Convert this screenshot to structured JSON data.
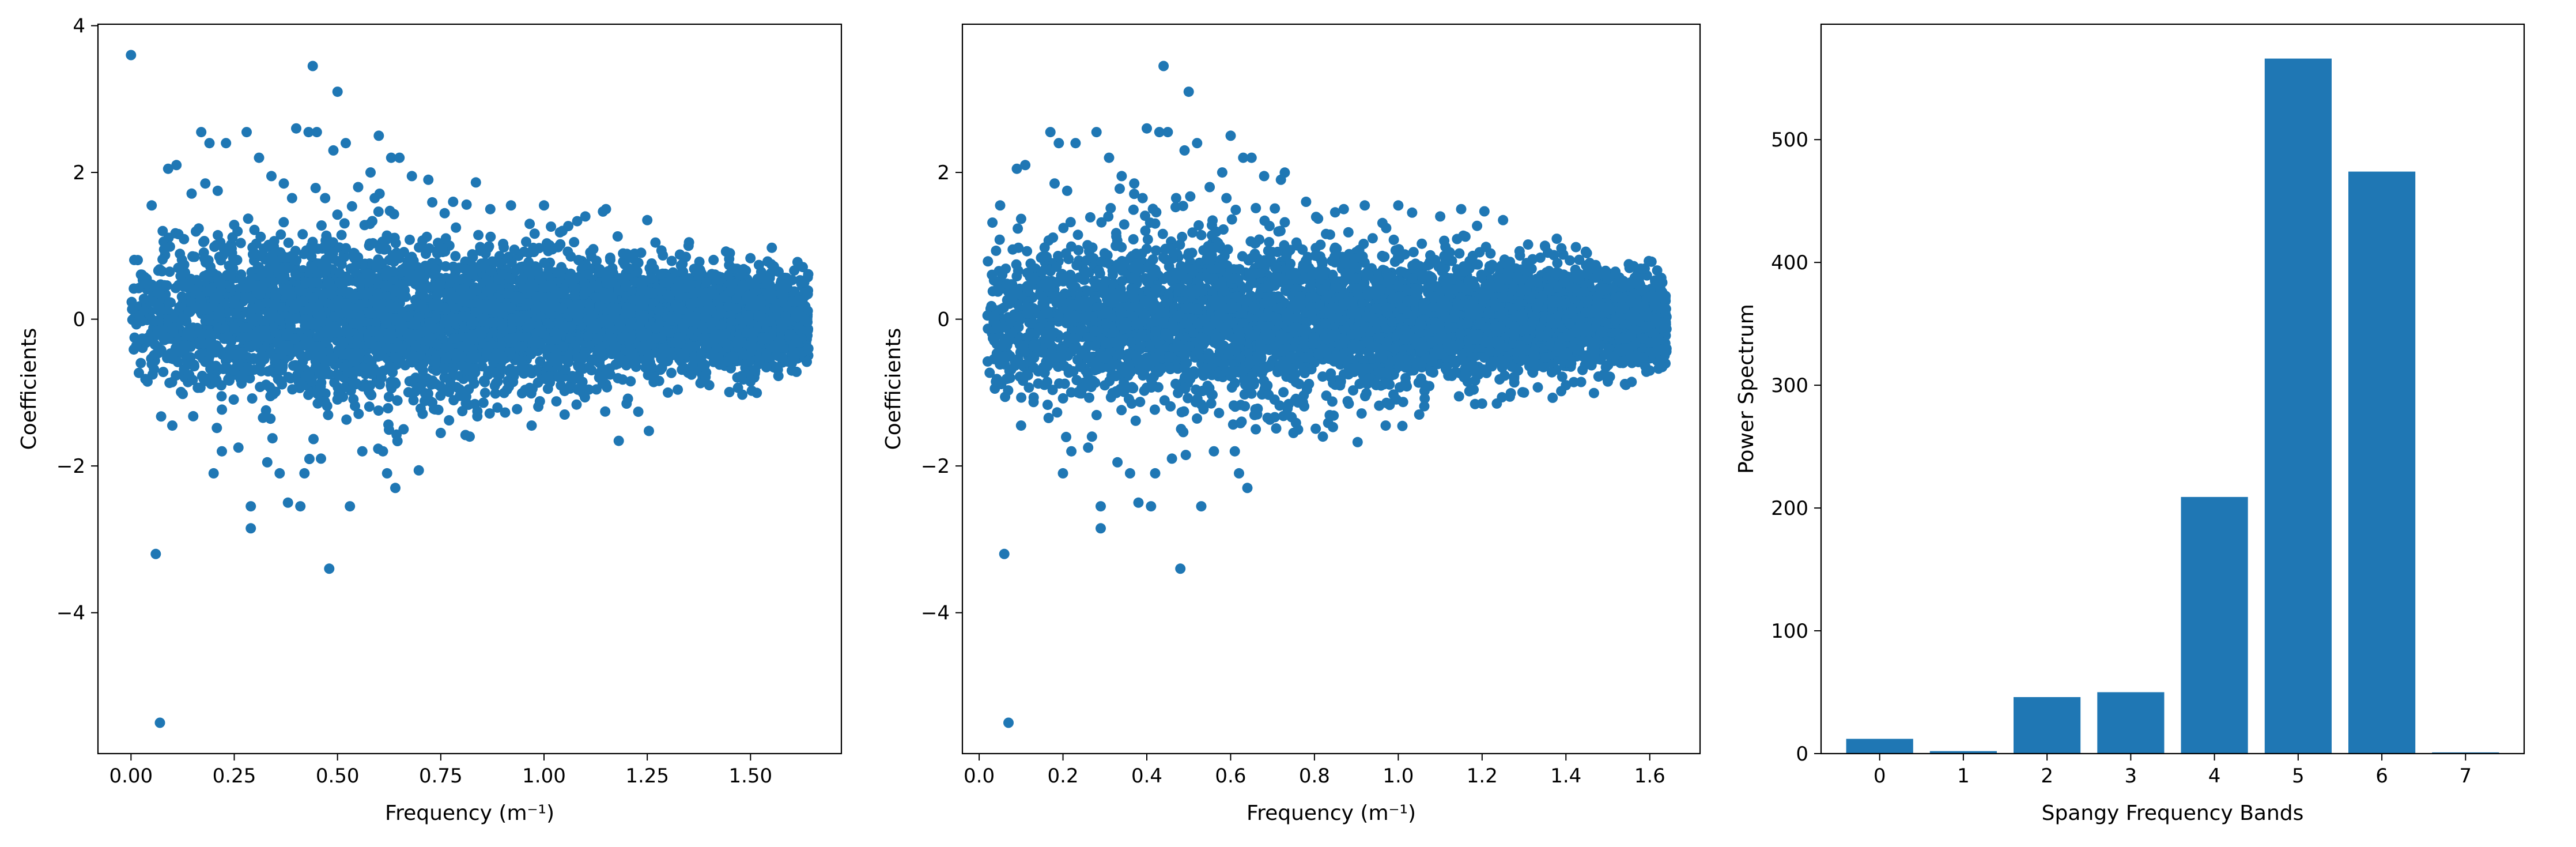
{
  "chart_data": [
    {
      "type": "scatter",
      "xlabel": "Frequency (m⁻¹)",
      "ylabel": "Coefficients",
      "xlim": [
        -0.08,
        1.72
      ],
      "ylim": [
        -5.92,
        4.02
      ],
      "xticks": [
        0.0,
        0.25,
        0.5,
        0.75,
        1.0,
        1.25,
        1.5
      ],
      "xtick_labels": [
        "0.00",
        "0.25",
        "0.50",
        "0.75",
        "1.00",
        "1.25",
        "1.50"
      ],
      "yticks": [
        -4,
        -2,
        0,
        2,
        4
      ],
      "ytick_labels": [
        "−4",
        "−2",
        "0",
        "2",
        "4"
      ],
      "points": [
        [
          0.0,
          3.6
        ],
        [
          0.02,
          0.05
        ],
        [
          0.04,
          -0.85
        ],
        [
          0.05,
          1.55
        ],
        [
          0.06,
          -3.2
        ],
        [
          0.07,
          -5.5
        ],
        [
          0.08,
          0.95
        ],
        [
          0.09,
          2.05
        ],
        [
          0.11,
          2.1
        ],
        [
          0.1,
          -1.45
        ],
        [
          0.13,
          -0.35
        ],
        [
          0.15,
          0.85
        ],
        [
          0.17,
          2.55
        ],
        [
          0.18,
          1.85
        ],
        [
          0.19,
          2.4
        ],
        [
          0.2,
          -2.1
        ],
        [
          0.21,
          1.75
        ],
        [
          0.22,
          -1.8
        ],
        [
          0.23,
          2.4
        ],
        [
          0.25,
          0.25
        ],
        [
          0.26,
          -1.75
        ],
        [
          0.28,
          2.55
        ],
        [
          0.29,
          -2.55
        ],
        [
          0.29,
          -2.85
        ],
        [
          0.31,
          2.2
        ],
        [
          0.33,
          -1.95
        ],
        [
          0.34,
          1.95
        ],
        [
          0.36,
          -2.1
        ],
        [
          0.37,
          1.85
        ],
        [
          0.38,
          -2.5
        ],
        [
          0.39,
          1.65
        ],
        [
          0.4,
          2.6
        ],
        [
          0.41,
          -2.55
        ],
        [
          0.42,
          -2.1
        ],
        [
          0.43,
          2.55
        ],
        [
          0.44,
          3.45
        ],
        [
          0.45,
          2.55
        ],
        [
          0.46,
          -1.9
        ],
        [
          0.47,
          1.65
        ],
        [
          0.48,
          -3.4
        ],
        [
          0.49,
          2.3
        ],
        [
          0.5,
          3.1
        ],
        [
          0.52,
          2.4
        ],
        [
          0.53,
          -2.55
        ],
        [
          0.55,
          1.8
        ],
        [
          0.56,
          -1.8
        ],
        [
          0.58,
          2.0
        ],
        [
          0.59,
          1.65
        ],
        [
          0.6,
          2.5
        ],
        [
          0.61,
          -1.8
        ],
        [
          0.62,
          -2.1
        ],
        [
          0.63,
          2.2
        ],
        [
          0.64,
          -2.3
        ],
        [
          0.65,
          2.2
        ],
        [
          0.66,
          -1.5
        ],
        [
          0.68,
          1.95
        ],
        [
          0.72,
          1.9
        ],
        [
          0.75,
          -1.55
        ],
        [
          0.78,
          1.6
        ],
        [
          0.82,
          -1.6
        ],
        [
          0.87,
          1.5
        ],
        [
          0.92,
          1.55
        ],
        [
          0.97,
          -1.45
        ],
        [
          1.0,
          1.55
        ],
        [
          1.05,
          -1.3
        ],
        [
          1.1,
          1.4
        ],
        [
          1.15,
          1.5
        ],
        [
          1.2,
          -1.15
        ],
        [
          1.25,
          1.35
        ],
        [
          1.3,
          -1.0
        ],
        [
          1.35,
          1.0
        ],
        [
          1.4,
          -0.9
        ],
        [
          1.45,
          0.9
        ],
        [
          1.5,
          -0.85
        ],
        [
          1.55,
          0.75
        ],
        [
          1.6,
          -0.7
        ],
        [
          1.63,
          0.5
        ],
        [
          1.64,
          -0.4
        ]
      ],
      "cloud": {
        "generated": true,
        "x_range": [
          0.0,
          1.64
        ],
        "envelope_x": [
          0.0,
          0.25,
          0.5,
          0.75,
          1.0,
          1.25,
          1.5,
          1.64
        ],
        "envelope_y": [
          1.1,
          1.25,
          1.35,
          1.25,
          1.05,
          0.9,
          0.75,
          0.65
        ]
      }
    },
    {
      "type": "scatter",
      "xlabel": "Frequency (m⁻¹)",
      "ylabel": "Coefficients",
      "xlim": [
        -0.04,
        1.72
      ],
      "ylim": [
        -5.92,
        4.02
      ],
      "xticks": [
        0.0,
        0.2,
        0.4,
        0.6,
        0.8,
        1.0,
        1.2,
        1.4,
        1.6
      ],
      "xtick_labels": [
        "0.0",
        "0.2",
        "0.4",
        "0.6",
        "0.8",
        "1.0",
        "1.2",
        "1.4",
        "1.6"
      ],
      "yticks": [
        -4,
        -2,
        0,
        2
      ],
      "ytick_labels": [
        "−4",
        "−2",
        "0",
        "2"
      ],
      "points": [
        [
          0.02,
          0.05
        ],
        [
          0.04,
          -0.85
        ],
        [
          0.05,
          1.55
        ],
        [
          0.06,
          -3.2
        ],
        [
          0.07,
          -5.5
        ],
        [
          0.08,
          0.95
        ],
        [
          0.09,
          2.05
        ],
        [
          0.11,
          2.1
        ],
        [
          0.1,
          -1.45
        ],
        [
          0.13,
          -0.35
        ],
        [
          0.15,
          0.85
        ],
        [
          0.17,
          2.55
        ],
        [
          0.18,
          1.85
        ],
        [
          0.19,
          2.4
        ],
        [
          0.2,
          -2.1
        ],
        [
          0.21,
          1.75
        ],
        [
          0.22,
          -1.8
        ],
        [
          0.23,
          2.4
        ],
        [
          0.25,
          0.25
        ],
        [
          0.26,
          -1.75
        ],
        [
          0.28,
          2.55
        ],
        [
          0.29,
          -2.55
        ],
        [
          0.29,
          -2.85
        ],
        [
          0.31,
          2.2
        ],
        [
          0.33,
          -1.95
        ],
        [
          0.34,
          1.95
        ],
        [
          0.36,
          -2.1
        ],
        [
          0.37,
          1.85
        ],
        [
          0.38,
          -2.5
        ],
        [
          0.39,
          1.65
        ],
        [
          0.4,
          2.6
        ],
        [
          0.41,
          -2.55
        ],
        [
          0.42,
          -2.1
        ],
        [
          0.43,
          2.55
        ],
        [
          0.44,
          3.45
        ],
        [
          0.45,
          2.55
        ],
        [
          0.46,
          -1.9
        ],
        [
          0.47,
          1.65
        ],
        [
          0.48,
          -3.4
        ],
        [
          0.49,
          2.3
        ],
        [
          0.5,
          3.1
        ],
        [
          0.52,
          2.4
        ],
        [
          0.53,
          -2.55
        ],
        [
          0.55,
          1.8
        ],
        [
          0.56,
          -1.8
        ],
        [
          0.58,
          2.0
        ],
        [
          0.59,
          1.65
        ],
        [
          0.6,
          2.5
        ],
        [
          0.61,
          -1.8
        ],
        [
          0.62,
          -2.1
        ],
        [
          0.63,
          2.2
        ],
        [
          0.64,
          -2.3
        ],
        [
          0.65,
          2.2
        ],
        [
          0.66,
          -1.5
        ],
        [
          0.68,
          1.95
        ],
        [
          0.72,
          1.9
        ],
        [
          0.75,
          -1.55
        ],
        [
          0.78,
          1.6
        ],
        [
          0.82,
          -1.6
        ],
        [
          0.87,
          1.5
        ],
        [
          0.92,
          1.55
        ],
        [
          0.97,
          -1.45
        ],
        [
          1.0,
          1.55
        ],
        [
          1.05,
          -1.3
        ],
        [
          1.1,
          1.4
        ],
        [
          1.15,
          1.5
        ],
        [
          1.2,
          -1.15
        ],
        [
          1.25,
          1.35
        ],
        [
          1.3,
          -1.0
        ],
        [
          1.35,
          1.0
        ],
        [
          1.4,
          -0.9
        ],
        [
          1.45,
          0.9
        ],
        [
          1.5,
          -0.85
        ],
        [
          1.55,
          0.75
        ],
        [
          1.6,
          -0.7
        ],
        [
          1.63,
          0.5
        ],
        [
          1.64,
          -0.4
        ]
      ],
      "cloud": {
        "generated": true,
        "x_range": [
          0.02,
          1.64
        ],
        "envelope_x": [
          0.0,
          0.25,
          0.5,
          0.75,
          1.0,
          1.25,
          1.5,
          1.64
        ],
        "envelope_y": [
          1.1,
          1.25,
          1.35,
          1.25,
          1.05,
          0.9,
          0.75,
          0.65
        ]
      }
    },
    {
      "type": "bar",
      "xlabel": "Spangy Frequency Bands",
      "ylabel": "Power Spectrum",
      "categories": [
        "0",
        "1",
        "2",
        "3",
        "4",
        "5",
        "6",
        "7"
      ],
      "values": [
        12,
        2,
        46,
        50,
        209,
        566,
        474,
        1
      ],
      "ylim": [
        0,
        594
      ],
      "yticks": [
        0,
        100,
        200,
        300,
        400,
        500
      ],
      "ytick_labels": [
        "0",
        "100",
        "200",
        "300",
        "400",
        "500"
      ]
    }
  ],
  "colors": {
    "series": "#1f77b4",
    "axes": "#000000",
    "background": "#ffffff"
  }
}
